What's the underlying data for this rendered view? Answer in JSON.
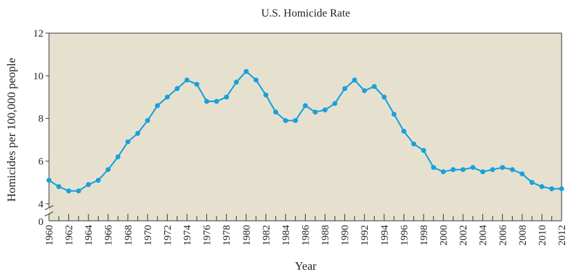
{
  "chart_data": {
    "type": "line",
    "title": "U.S. Homicide Rate",
    "xlabel": "Year",
    "ylabel": "Homicides per 100,000 people",
    "xlim": [
      1960,
      2012
    ],
    "ylim": [
      3.2,
      12
    ],
    "axis_break": true,
    "y_ticks": [
      4,
      6,
      8,
      10,
      12
    ],
    "y_zero_label": "0",
    "x_tick_labels": [
      "1960",
      "1962",
      "1964",
      "1966",
      "1968",
      "1970",
      "1972",
      "1974",
      "1976",
      "1978",
      "1980",
      "1982",
      "1984",
      "1986",
      "1988",
      "1990",
      "1992",
      "1994",
      "1996",
      "1998",
      "2000",
      "2002",
      "2004",
      "2006",
      "2008",
      "2010",
      "2012"
    ],
    "grid": false,
    "colors": {
      "line": "#1aa0dc",
      "plot_background": "#e6e1cf"
    },
    "x": [
      1960,
      1961,
      1962,
      1963,
      1964,
      1965,
      1966,
      1967,
      1968,
      1969,
      1970,
      1971,
      1972,
      1973,
      1974,
      1975,
      1976,
      1977,
      1978,
      1979,
      1980,
      1981,
      1982,
      1983,
      1984,
      1985,
      1986,
      1987,
      1988,
      1989,
      1990,
      1991,
      1992,
      1993,
      1994,
      1995,
      1996,
      1997,
      1998,
      1999,
      2000,
      2001,
      2002,
      2003,
      2004,
      2005,
      2006,
      2007,
      2008,
      2009,
      2010,
      2011,
      2012
    ],
    "y": [
      5.1,
      4.8,
      4.6,
      4.6,
      4.9,
      5.1,
      5.6,
      6.2,
      6.9,
      7.3,
      7.9,
      8.6,
      9.0,
      9.4,
      9.8,
      9.6,
      8.8,
      8.8,
      9.0,
      9.7,
      10.2,
      9.8,
      9.1,
      8.3,
      7.9,
      7.9,
      8.6,
      8.3,
      8.4,
      8.7,
      9.4,
      9.8,
      9.3,
      9.5,
      9.0,
      8.2,
      7.4,
      6.8,
      6.5,
      5.7,
      5.5,
      5.6,
      5.6,
      5.7,
      5.5,
      5.6,
      5.7,
      5.6,
      5.4,
      5.0,
      4.8,
      4.7,
      4.7
    ]
  }
}
